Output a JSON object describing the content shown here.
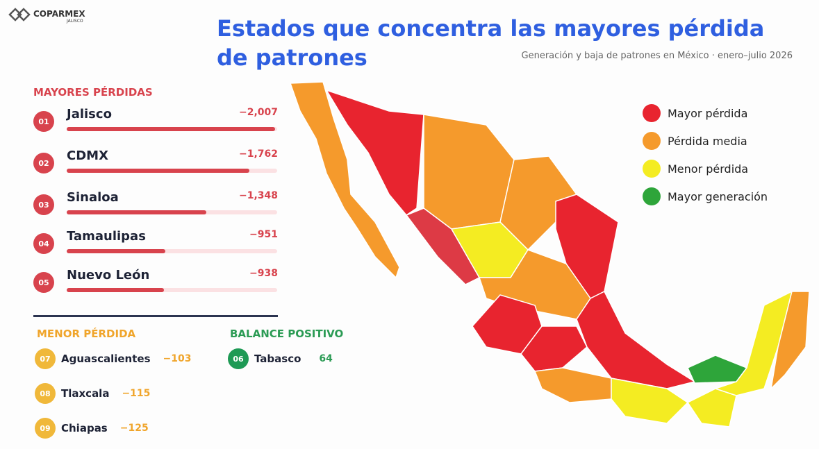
{
  "header": {
    "brand": "COPARMEX",
    "brand_sub": "JALISCO",
    "title": "Estados que concentra las mayores pérdida de patrones",
    "subtitle": "Generación y baja de patrones en México · enero–julio 2026"
  },
  "top_losses": {
    "heading": "MAYORES PÉRDIDAS",
    "items": [
      {
        "rank": "01",
        "name": "Jalisco",
        "value": -2007,
        "label": "−2,007"
      },
      {
        "rank": "02",
        "name": "CDMX",
        "value": -1762,
        "label": "−1,762"
      },
      {
        "rank": "03",
        "name": "Sinaloa",
        "value": -1348,
        "label": "−1,348"
      },
      {
        "rank": "04",
        "name": "Tamaulipas",
        "value": -951,
        "label": "−951"
      },
      {
        "rank": "05",
        "name": "Nuevo León",
        "value": -938,
        "label": "−938"
      }
    ]
  },
  "lower_losses": {
    "heading": "MENOR PÉRDIDA",
    "items": [
      {
        "rank": "07",
        "name": "Aguascalientes",
        "value": -103,
        "label": "−103"
      },
      {
        "rank": "08",
        "name": "Tlaxcala",
        "value": -115,
        "label": "−115"
      },
      {
        "rank": "09",
        "name": "Chiapas",
        "value": -125,
        "label": "−125"
      }
    ]
  },
  "positive": {
    "heading": "BALANCE POSITIVO",
    "items": [
      {
        "rank": "06",
        "name": "Tabasco",
        "value": 64
      }
    ]
  },
  "legend": [
    {
      "label": "Mayor pérdida",
      "color": "#e8242f"
    },
    {
      "label": "Pérdida media",
      "color": "#f59a2c"
    },
    {
      "label": "Menor pérdida",
      "color": "#f4ec22"
    },
    {
      "label": "Mayor generación",
      "color": "#2ea53a"
    }
  ]
}
